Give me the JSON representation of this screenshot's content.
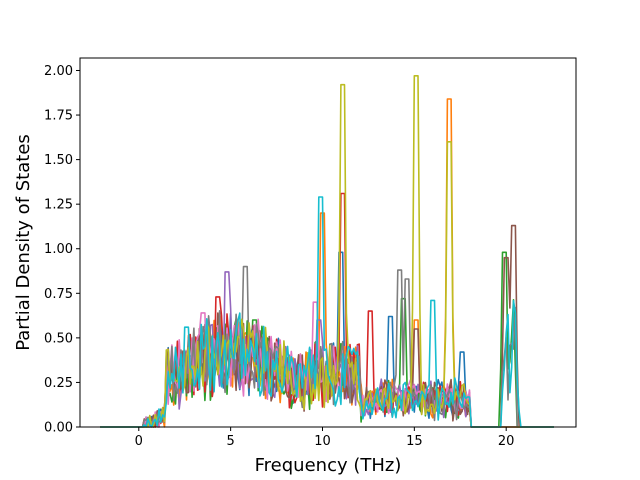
{
  "chart_data": {
    "type": "line",
    "title": "",
    "xlabel": "Frequency (THz)",
    "ylabel": "Partial Density of States",
    "xlim": [
      -3.2,
      23.8
    ],
    "ylim": [
      0.0,
      2.07
    ],
    "x_ticks": [
      0,
      5,
      10,
      15,
      20
    ],
    "y_ticks": [
      0.0,
      0.25,
      0.5,
      0.75,
      1.0,
      1.25,
      1.5,
      1.75,
      2.0
    ],
    "x_tick_labels": [
      "0",
      "5",
      "10",
      "15",
      "20"
    ],
    "y_tick_labels": [
      "0.00",
      "0.25",
      "0.50",
      "0.75",
      "1.00",
      "1.25",
      "1.50",
      "1.75",
      "2.00"
    ],
    "grid": false,
    "legend": "none",
    "sampling_note_x": [
      -2.1,
      22.6
    ],
    "series": [
      {
        "color": "#1f77b4",
        "peaks": [
          [
            11.0,
            0.98
          ],
          [
            13.7,
            0.62
          ],
          [
            17.6,
            0.42
          ]
        ]
      },
      {
        "color": "#ff7f0e",
        "peaks": [
          [
            10.0,
            1.2
          ],
          [
            16.9,
            1.84
          ],
          [
            15.1,
            0.6
          ]
        ]
      },
      {
        "color": "#2ca02c",
        "peaks": [
          [
            14.4,
            0.72
          ],
          [
            19.9,
            0.98
          ],
          [
            6.3,
            0.6
          ]
        ]
      },
      {
        "color": "#d62728",
        "peaks": [
          [
            11.1,
            1.31
          ],
          [
            4.3,
            0.73
          ],
          [
            12.6,
            0.65
          ]
        ]
      },
      {
        "color": "#9467bd",
        "peaks": [
          [
            4.8,
            0.87
          ],
          [
            9.8,
            0.6
          ]
        ]
      },
      {
        "color": "#8c564b",
        "peaks": [
          [
            20.4,
            1.13
          ],
          [
            20.0,
            0.95
          ],
          [
            15.1,
            0.55
          ]
        ]
      },
      {
        "color": "#e377c2",
        "peaks": [
          [
            3.5,
            0.64
          ],
          [
            9.6,
            0.7
          ]
        ]
      },
      {
        "color": "#7f7f7f",
        "peaks": [
          [
            5.8,
            0.9
          ],
          [
            14.2,
            0.88
          ],
          [
            14.6,
            0.83
          ]
        ]
      },
      {
        "color": "#bcbd22",
        "peaks": [
          [
            11.1,
            1.92
          ],
          [
            15.1,
            1.97
          ],
          [
            16.9,
            1.6
          ]
        ]
      },
      {
        "color": "#17becf",
        "peaks": [
          [
            9.9,
            1.29
          ],
          [
            16.0,
            0.71
          ],
          [
            20.5,
            0.27
          ],
          [
            2.6,
            0.56
          ]
        ]
      }
    ]
  }
}
